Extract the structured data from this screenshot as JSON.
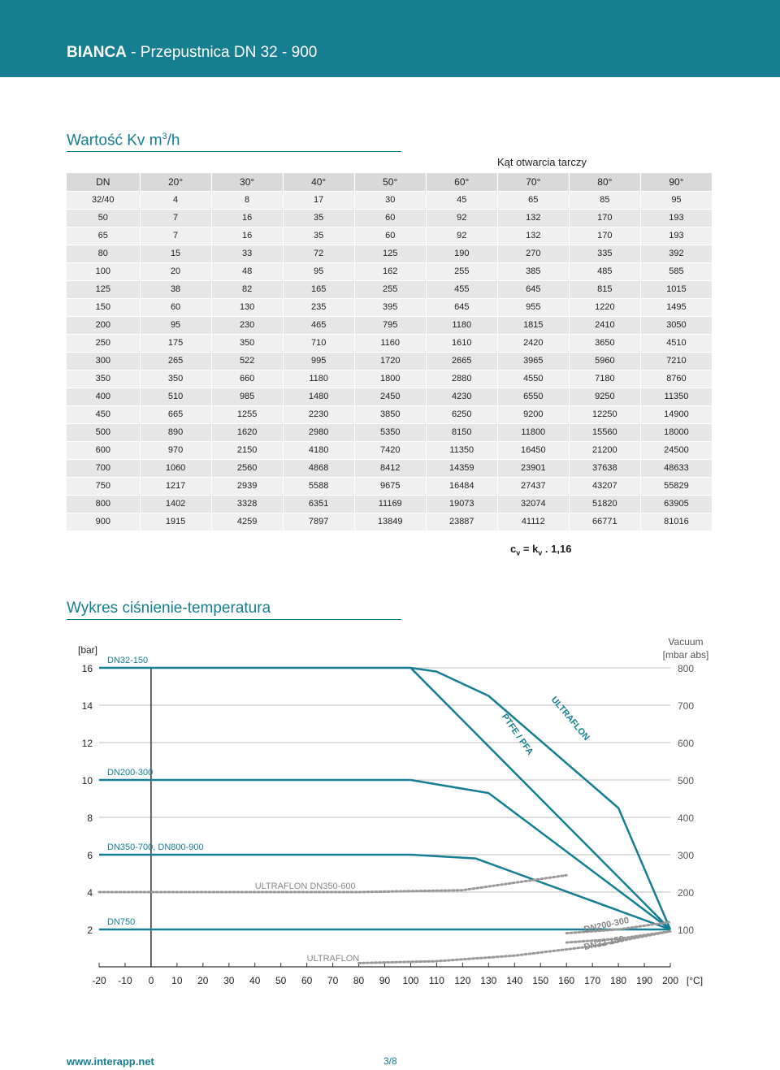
{
  "header": {
    "brand": "BIANCA",
    "title": " - Przepustnica DN 32 - 900"
  },
  "kv_section": {
    "title_main": "Wartość Kv m",
    "title_sup": "3",
    "title_tail": "/h",
    "angle_caption": "Kąt otwarcia tarczy",
    "columns": [
      "DN",
      "20°",
      "30°",
      "40°",
      "50°",
      "60°",
      "70°",
      "80°",
      "90°"
    ],
    "rows": [
      [
        "32/40",
        "4",
        "8",
        "17",
        "30",
        "45",
        "65",
        "85",
        "95"
      ],
      [
        "50",
        "7",
        "16",
        "35",
        "60",
        "92",
        "132",
        "170",
        "193"
      ],
      [
        "65",
        "7",
        "16",
        "35",
        "60",
        "92",
        "132",
        "170",
        "193"
      ],
      [
        "80",
        "15",
        "33",
        "72",
        "125",
        "190",
        "270",
        "335",
        "392"
      ],
      [
        "100",
        "20",
        "48",
        "95",
        "162",
        "255",
        "385",
        "485",
        "585"
      ],
      [
        "125",
        "38",
        "82",
        "165",
        "255",
        "455",
        "645",
        "815",
        "1015"
      ],
      [
        "150",
        "60",
        "130",
        "235",
        "395",
        "645",
        "955",
        "1220",
        "1495"
      ],
      [
        "200",
        "95",
        "230",
        "465",
        "795",
        "1180",
        "1815",
        "2410",
        "3050"
      ],
      [
        "250",
        "175",
        "350",
        "710",
        "1160",
        "1610",
        "2420",
        "3650",
        "4510"
      ],
      [
        "300",
        "265",
        "522",
        "995",
        "1720",
        "2665",
        "3965",
        "5960",
        "7210"
      ],
      [
        "350",
        "350",
        "660",
        "1180",
        "1800",
        "2880",
        "4550",
        "7180",
        "8760"
      ],
      [
        "400",
        "510",
        "985",
        "1480",
        "2450",
        "4230",
        "6550",
        "9250",
        "11350"
      ],
      [
        "450",
        "665",
        "1255",
        "2230",
        "3850",
        "6250",
        "9200",
        "12250",
        "14900"
      ],
      [
        "500",
        "890",
        "1620",
        "2980",
        "5350",
        "8150",
        "11800",
        "15560",
        "18000"
      ],
      [
        "600",
        "970",
        "2150",
        "4180",
        "7420",
        "11350",
        "16450",
        "21200",
        "24500"
      ],
      [
        "700",
        "1060",
        "2560",
        "4868",
        "8412",
        "14359",
        "23901",
        "37638",
        "48633"
      ],
      [
        "750",
        "1217",
        "2939",
        "5588",
        "9675",
        "16484",
        "27437",
        "43207",
        "55829"
      ],
      [
        "800",
        "1402",
        "3328",
        "6351",
        "11169",
        "19073",
        "32074",
        "51820",
        "63905"
      ],
      [
        "900",
        "1915",
        "4259",
        "7897",
        "13849",
        "23887",
        "41112",
        "66771",
        "81016"
      ]
    ],
    "formula": {
      "c": "c",
      "c_sub": "v",
      "mid": " = k",
      "k_sub": "v",
      "tail": " . 1,16"
    }
  },
  "chart_section": {
    "title": "Wykres ciśnienie-temperatura"
  },
  "chart_data": {
    "type": "line",
    "xlabel": "[°C]",
    "ylabel": "[bar]",
    "y2label_1": "Vacuum",
    "y2label_2": "[mbar abs]",
    "xlim": [
      -20,
      200
    ],
    "ylim": [
      0,
      16
    ],
    "x_ticks": [
      -20,
      -10,
      0,
      10,
      20,
      30,
      40,
      50,
      60,
      70,
      80,
      90,
      100,
      110,
      120,
      130,
      140,
      150,
      160,
      170,
      180,
      190,
      200
    ],
    "y_ticks": [
      2,
      4,
      6,
      8,
      10,
      12,
      14,
      16
    ],
    "y2_ticks": [
      {
        "at": 16,
        "label": "800"
      },
      {
        "at": 14,
        "label": "700"
      },
      {
        "at": 12,
        "label": "600"
      },
      {
        "at": 10,
        "label": "500"
      },
      {
        "at": 8,
        "label": "400"
      },
      {
        "at": 6,
        "label": "300"
      },
      {
        "at": 4,
        "label": "200"
      },
      {
        "at": 2,
        "label": "100"
      }
    ],
    "pressure_series": [
      {
        "name": "DN32-150",
        "x": [
          -20,
          75,
          100,
          200
        ],
        "y": [
          16,
          16,
          16,
          2
        ]
      },
      {
        "name": "DN200-300",
        "x": [
          -20,
          100
        ],
        "y": [
          10,
          10
        ]
      },
      {
        "name": "DN350-700, DN800-900",
        "x": [
          -20,
          80,
          100
        ],
        "y": [
          6,
          6,
          6
        ]
      },
      {
        "name": "DN750",
        "x": [
          -20,
          100
        ],
        "y": [
          2,
          2
        ]
      },
      {
        "name": "",
        "x": [
          100,
          110,
          130,
          180,
          200
        ],
        "y": [
          16,
          15.8,
          14.5,
          8.5,
          2
        ]
      },
      {
        "name": "",
        "x": [
          100,
          130,
          200
        ],
        "y": [
          10,
          9.3,
          2
        ]
      },
      {
        "name": "",
        "x": [
          100,
          125,
          200
        ],
        "y": [
          6,
          5.8,
          2
        ]
      },
      {
        "name": "",
        "x": [
          100,
          200
        ],
        "y": [
          2,
          2
        ]
      }
    ],
    "material_labels": [
      "PTFE / PFA",
      "ULTRAFLON"
    ],
    "vacuum_series": [
      {
        "name": "ULTRAFLON DN350-600",
        "x": [
          -20,
          0,
          80,
          120,
          160
        ],
        "y": [
          4,
          4,
          4,
          4.1,
          4.9
        ]
      },
      {
        "name": "ULTRAFLON",
        "x": [
          80,
          110,
          140,
          170,
          200
        ],
        "y": [
          0.2,
          0.3,
          0.6,
          1.1,
          1.9
        ]
      },
      {
        "name": "DN200-300",
        "x": [
          160,
          180,
          200
        ],
        "y": [
          1.8,
          2.0,
          2.4
        ]
      },
      {
        "name": "DN32-150",
        "x": [
          160,
          180,
          200
        ],
        "y": [
          1.3,
          1.5,
          1.9
        ]
      }
    ]
  },
  "footer": {
    "url": "www.interapp.net",
    "page": "3/8"
  },
  "colors": {
    "accent": "#157f91",
    "dotted": "#999999",
    "grid": "#bbbbbb"
  }
}
